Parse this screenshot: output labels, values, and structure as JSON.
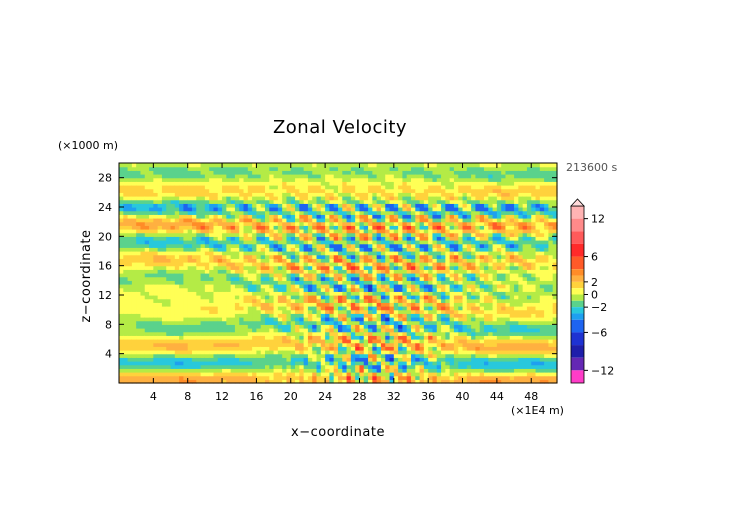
{
  "chart_data": {
    "type": "heatmap",
    "title": "Zonal Velocity",
    "xlabel": "x−coordinate",
    "ylabel": "z−coordinate",
    "x_unit_label": "(×1E4 m)",
    "y_unit_label": "(×1000 m)",
    "time_label": "213600 s",
    "xlim": [
      0,
      51
    ],
    "ylim": [
      0,
      30
    ],
    "xticks": [
      "4",
      "8",
      "12",
      "16",
      "20",
      "24",
      "28",
      "32",
      "36",
      "40",
      "44",
      "48"
    ],
    "yticks": [
      "4",
      "8",
      "12",
      "16",
      "20",
      "24",
      "28"
    ],
    "colorbar": {
      "tick_labels": [
        "12",
        "6",
        "2",
        "0",
        "−2",
        "−6",
        "−12"
      ],
      "tick_values": [
        12,
        6,
        2,
        0,
        -2,
        -6,
        -12
      ],
      "levels": [
        {
          "min": 12,
          "max": 14,
          "color": "#ffb3b3"
        },
        {
          "min": 10,
          "max": 12,
          "color": "#ff8a8a"
        },
        {
          "min": 8,
          "max": 10,
          "color": "#ff5a5a"
        },
        {
          "min": 6,
          "max": 8,
          "color": "#ff2a2a"
        },
        {
          "min": 4,
          "max": 6,
          "color": "#ff5a28"
        },
        {
          "min": 3,
          "max": 4,
          "color": "#ff8c28"
        },
        {
          "min": 2,
          "max": 3,
          "color": "#ffb040"
        },
        {
          "min": 1,
          "max": 2,
          "color": "#ffd23c"
        },
        {
          "min": 0,
          "max": 1,
          "color": "#ffff55"
        },
        {
          "min": -1,
          "max": 0,
          "color": "#b4eb46"
        },
        {
          "min": -2,
          "max": -1,
          "color": "#5ad28c"
        },
        {
          "min": -3,
          "max": -2,
          "color": "#28c8dc"
        },
        {
          "min": -4,
          "max": -3,
          "color": "#1ea0f0"
        },
        {
          "min": -6,
          "max": -4,
          "color": "#1e64f0"
        },
        {
          "min": -8,
          "max": -6,
          "color": "#1e32d2"
        },
        {
          "min": -10,
          "max": -8,
          "color": "#1e1eaa"
        },
        {
          "min": -12,
          "max": -10,
          "color": "#6428b4"
        },
        {
          "min": -14,
          "max": -12,
          "color": "#ff3cc8"
        }
      ]
    }
  }
}
